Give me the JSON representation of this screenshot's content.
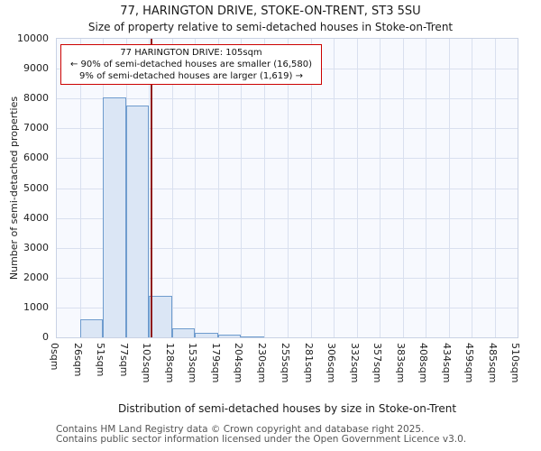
{
  "chart_data": {
    "type": "bar",
    "title": "77, HARINGTON DRIVE, STOKE-ON-TRENT, ST3 5SU",
    "subtitle": "Size of property relative to semi-detached houses in Stoke-on-Trent",
    "xlabel": "Distribution of semi-detached houses by size in Stoke-on-Trent",
    "ylabel": "Number of semi-detached properties",
    "bin_edges_sqm": [
      0,
      26,
      51,
      77,
      102,
      128,
      153,
      179,
      204,
      230,
      255,
      281,
      306,
      332,
      357,
      383,
      408,
      434,
      459,
      485,
      510
    ],
    "x_tick_labels": [
      "0sqm",
      "26sqm",
      "51sqm",
      "77sqm",
      "102sqm",
      "128sqm",
      "153sqm",
      "179sqm",
      "204sqm",
      "230sqm",
      "255sqm",
      "281sqm",
      "306sqm",
      "332sqm",
      "357sqm",
      "383sqm",
      "408sqm",
      "434sqm",
      "459sqm",
      "485sqm",
      "510sqm"
    ],
    "values": [
      0,
      600,
      8050,
      7750,
      1400,
      300,
      150,
      80,
      40,
      0,
      0,
      0,
      0,
      0,
      0,
      0,
      0,
      0,
      0,
      0
    ],
    "ylim": [
      0,
      10000
    ],
    "y_ticks": [
      0,
      1000,
      2000,
      3000,
      4000,
      5000,
      6000,
      7000,
      8000,
      9000,
      10000
    ],
    "grid": true,
    "marker_sqm": 105,
    "annotation": {
      "line1": "77 HARINGTON DRIVE: 105sqm",
      "line2": "← 90% of semi-detached houses are smaller (16,580)",
      "line3": "9% of semi-detached houses are larger (1,619) →"
    },
    "colors": {
      "bar_fill": "#dbe6f5",
      "bar_border": "#6f9cce",
      "marker_line": "#8f1a1a",
      "annotation_border": "#cc0000",
      "gridline": "#d9e0ef"
    }
  },
  "footer": {
    "line1": "Contains HM Land Registry data © Crown copyright and database right 2025.",
    "line2": "Contains public sector information licensed under the Open Government Licence v3.0."
  }
}
